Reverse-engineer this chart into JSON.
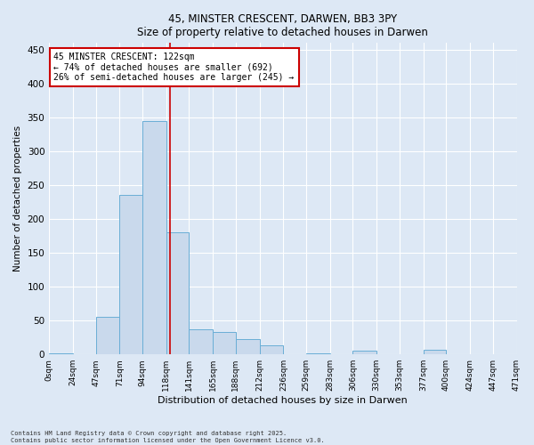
{
  "title_line1": "45, MINSTER CRESCENT, DARWEN, BB3 3PY",
  "title_line2": "Size of property relative to detached houses in Darwen",
  "xlabel": "Distribution of detached houses by size in Darwen",
  "ylabel": "Number of detached properties",
  "bin_edges": [
    0,
    24,
    47,
    71,
    94,
    118,
    141,
    165,
    188,
    212,
    236,
    259,
    283,
    306,
    330,
    353,
    377,
    400,
    424,
    447,
    471
  ],
  "bar_heights": [
    2,
    0,
    55,
    235,
    345,
    180,
    37,
    33,
    22,
    13,
    0,
    2,
    0,
    5,
    0,
    0,
    7,
    0,
    0,
    0
  ],
  "bar_color": "#c9d9ec",
  "bar_edge_color": "#6aaed6",
  "property_size": 122,
  "vline_color": "#cc0000",
  "annotation_text": "45 MINSTER CRESCENT: 122sqm\n← 74% of detached houses are smaller (692)\n26% of semi-detached houses are larger (245) →",
  "annotation_box_color": "#cc0000",
  "fig_background": "#dde8f5",
  "ax_background": "#dde8f5",
  "grid_color": "#ffffff",
  "ylim": [
    0,
    460
  ],
  "yticks": [
    0,
    50,
    100,
    150,
    200,
    250,
    300,
    350,
    400,
    450
  ],
  "tick_labels": [
    "0sqm",
    "24sqm",
    "47sqm",
    "71sqm",
    "94sqm",
    "118sqm",
    "141sqm",
    "165sqm",
    "188sqm",
    "212sqm",
    "236sqm",
    "259sqm",
    "283sqm",
    "306sqm",
    "330sqm",
    "353sqm",
    "377sqm",
    "400sqm",
    "424sqm",
    "447sqm",
    "471sqm"
  ],
  "footer_line1": "Contains HM Land Registry data © Crown copyright and database right 2025.",
  "footer_line2": "Contains public sector information licensed under the Open Government Licence v3.0."
}
